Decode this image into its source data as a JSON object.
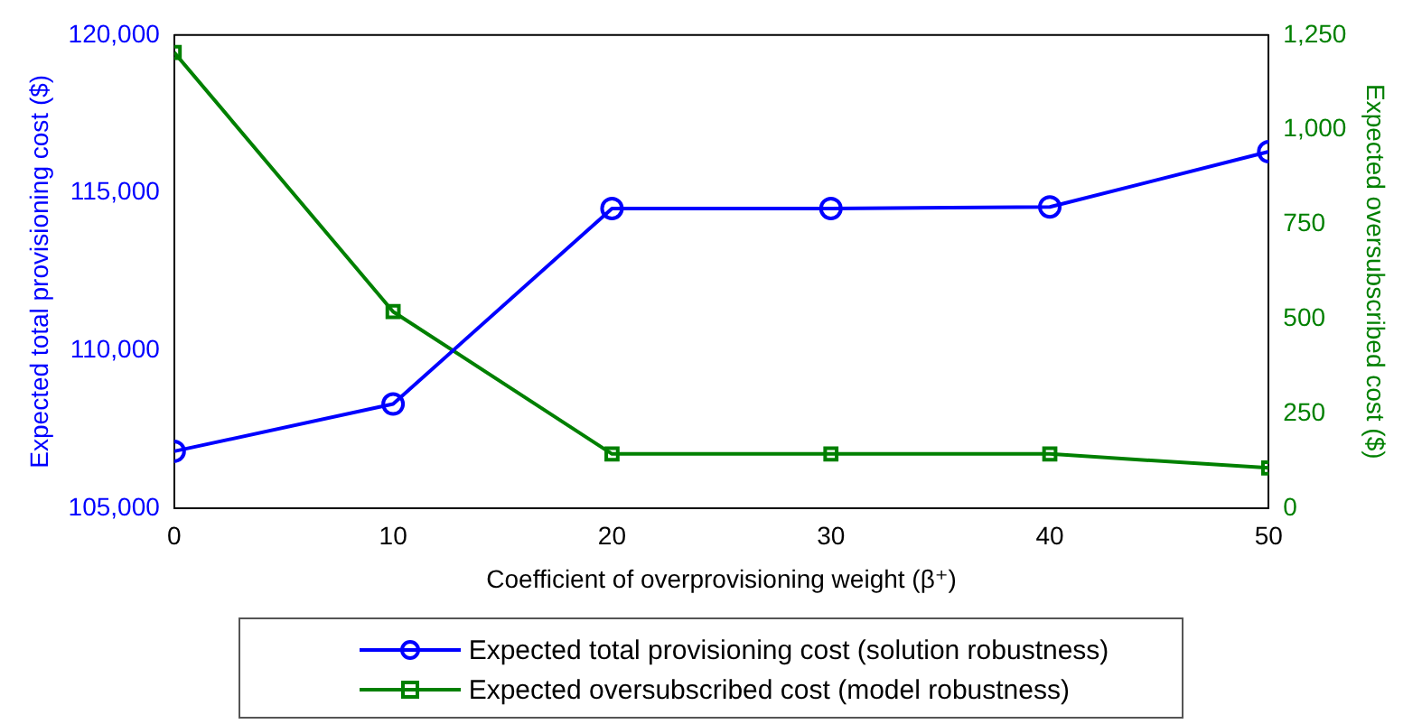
{
  "chart_data": {
    "type": "line",
    "xlabel": "Coefficient of overprovisioning weight (β⁺)",
    "ylabel": "Expected total provisioning cost ($)",
    "y2label": "Expected oversubscribed cost ($)",
    "x": [
      0,
      10,
      20,
      30,
      40,
      50
    ],
    "series": [
      {
        "name": "Expected total provisioning cost (solution robustness)",
        "color": "#0000ff",
        "marker": "circle",
        "values": [
          106800,
          108300,
          114500,
          114500,
          114550,
          116300
        ]
      },
      {
        "name": "Expected oversubscribed cost (model robustness)",
        "color": "#008000",
        "marker": "square",
        "axis": "y2",
        "values": [
          1204,
          519,
          143,
          143,
          143,
          106
        ]
      }
    ],
    "xlim": [
      0,
      50
    ],
    "xticks": [
      0,
      10,
      20,
      30,
      40,
      50
    ],
    "ylim": [
      105000,
      120000
    ],
    "yticks": [
      {
        "value": 105000,
        "label": "105,000"
      },
      {
        "value": 110000,
        "label": "110,000"
      },
      {
        "value": 115000,
        "label": "115,000"
      },
      {
        "value": 120000,
        "label": "120,000"
      }
    ],
    "y2lim": [
      0,
      1250
    ],
    "y2ticks": [
      0,
      250,
      500,
      750,
      {
        "value": 1000,
        "label": "1,000"
      },
      {
        "value": 1250,
        "label": "1,250"
      }
    ],
    "grid": false,
    "legend": "bottom",
    "line_style": "solid"
  }
}
